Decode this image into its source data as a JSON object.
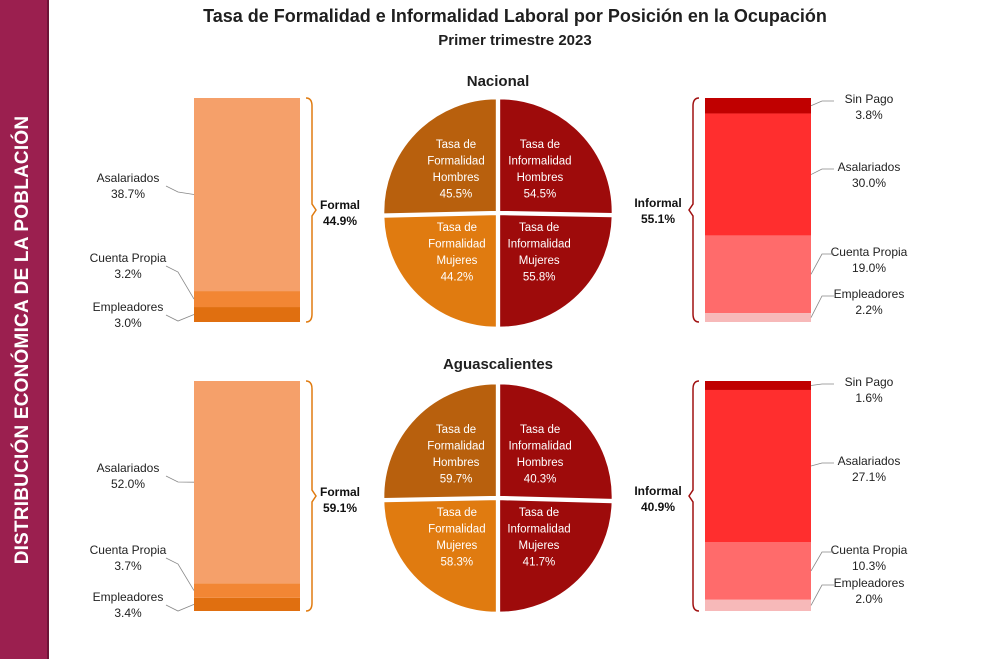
{
  "sidebar": {
    "label": "DISTRIBUCIÓN ECONÓMICA DE LA POBLACIÓN"
  },
  "header": {
    "title": "Tasa de Formalidad e Informalidad Laboral por Posición en la Ocupación",
    "subtitle": "Primer trimestre 2023"
  },
  "colors": {
    "asalariados_formal": "#f5a06a",
    "cuenta_propia_formal": "#f28634",
    "empleadores_formal": "#e06f10",
    "sin_pago_informal": "#c00000",
    "asalariados_informal": "#ff2e2e",
    "cuenta_propia_informal": "#ff6b6b",
    "empleadores_informal": "#f7b9b9",
    "pie_formal_hombres": "#b8600d",
    "pie_formal_mujeres": "#e07b10",
    "pie_informal": "#9e0b0b",
    "bracket_formal": "#e07b10",
    "bracket_informal": "#a01010"
  },
  "chart_data": [
    {
      "type": "pie",
      "title": "Nacional",
      "slices": [
        {
          "name": "Tasa de Informalidad Hombres",
          "lines": [
            "Tasa de",
            "Informalidad",
            "Hombres"
          ],
          "value": 54.5,
          "label": "54.5%"
        },
        {
          "name": "Tasa de Informalidad Mujeres",
          "lines": [
            "Tasa de",
            "Informalidad",
            "Mujeres"
          ],
          "value": 55.8,
          "label": "55.8%"
        },
        {
          "name": "Tasa de Formalidad Mujeres",
          "lines": [
            "Tasa de",
            "Formalidad",
            "Mujeres"
          ],
          "value": 44.2,
          "label": "44.2%"
        },
        {
          "name": "Tasa de Formalidad Hombres",
          "lines": [
            "Tasa de",
            "Formalidad",
            "Hombres"
          ],
          "value": 45.5,
          "label": "45.5%"
        }
      ],
      "formal": {
        "total_label": "Formal",
        "total": "44.9%",
        "segments": [
          {
            "name": "Asalariados",
            "value": 38.7,
            "label": "38.7%"
          },
          {
            "name": "Cuenta Propia",
            "value": 3.2,
            "label": "3.2%"
          },
          {
            "name": "Empleadores",
            "value": 3.0,
            "label": "3.0%"
          }
        ]
      },
      "informal": {
        "total_label": "Informal",
        "total": "55.1%",
        "segments": [
          {
            "name": "Sin Pago",
            "value": 3.8,
            "label": "3.8%"
          },
          {
            "name": "Asalariados",
            "value": 30.0,
            "label": "30.0%"
          },
          {
            "name": "Cuenta Propia",
            "value": 19.0,
            "label": "19.0%"
          },
          {
            "name": "Empleadores",
            "value": 2.2,
            "label": "2.2%"
          }
        ]
      }
    },
    {
      "type": "pie",
      "title": "Aguascalientes",
      "slices": [
        {
          "name": "Tasa de Informalidad Hombres",
          "lines": [
            "Tasa de",
            "Informalidad",
            "Hombres"
          ],
          "value": 40.3,
          "label": "40.3%"
        },
        {
          "name": "Tasa de Informalidad Mujeres",
          "lines": [
            "Tasa de",
            "Informalidad",
            "Mujeres"
          ],
          "value": 41.7,
          "label": "41.7%"
        },
        {
          "name": "Tasa de Formalidad Mujeres",
          "lines": [
            "Tasa de",
            "Formalidad",
            "Mujeres"
          ],
          "value": 58.3,
          "label": "58.3%"
        },
        {
          "name": "Tasa de Formalidad Hombres",
          "lines": [
            "Tasa de",
            "Formalidad",
            "Hombres"
          ],
          "value": 59.7,
          "label": "59.7%"
        }
      ],
      "formal": {
        "total_label": "Formal",
        "total": "59.1%",
        "segments": [
          {
            "name": "Asalariados",
            "value": 52.0,
            "label": "52.0%"
          },
          {
            "name": "Cuenta Propia",
            "value": 3.7,
            "label": "3.7%"
          },
          {
            "name": "Empleadores",
            "value": 3.4,
            "label": "3.4%"
          }
        ]
      },
      "informal": {
        "total_label": "Informal",
        "total": "40.9%",
        "segments": [
          {
            "name": "Sin Pago",
            "value": 1.6,
            "label": "1.6%"
          },
          {
            "name": "Asalariados",
            "value": 27.1,
            "label": "27.1%"
          },
          {
            "name": "Cuenta Propia",
            "value": 10.3,
            "label": "10.3%"
          },
          {
            "name": "Empleadores",
            "value": 2.0,
            "label": "2.0%"
          }
        ]
      }
    }
  ]
}
